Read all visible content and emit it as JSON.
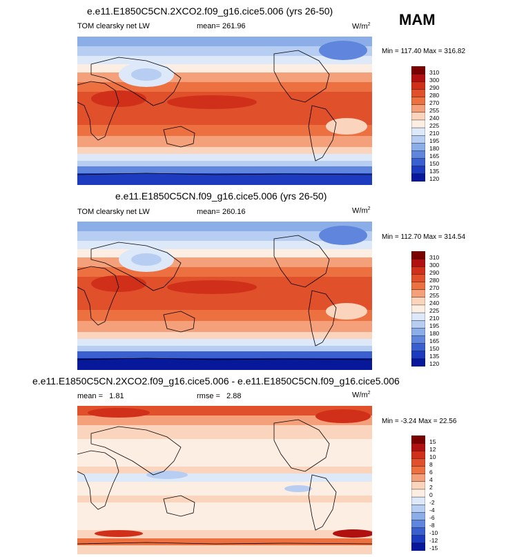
{
  "season": "MAM",
  "panels": [
    {
      "title": "e.e11.E1850C5CN.2XCO2.f09_g16.cice5.006 (yrs 26-50)",
      "left_text": "TOM clearsky net LW",
      "center_text": "mean= 261.96",
      "units": "W/m",
      "units_sup": "2",
      "minmax": "Min = 117.40 Max = 316.82",
      "colorbar_labels": [
        "310",
        "300",
        "290",
        "280",
        "270",
        "255",
        "240",
        "225",
        "210",
        "195",
        "180",
        "165",
        "150",
        "135",
        "120"
      ]
    },
    {
      "title": "e.e11.E1850C5CN.f09_g16.cice5.006 (yrs 26-50)",
      "left_text": "TOM clearsky net LW",
      "center_text": "mean= 260.16",
      "units": "W/m",
      "units_sup": "2",
      "minmax": "Min = 112.70 Max = 314.54",
      "colorbar_labels": [
        "310",
        "300",
        "290",
        "280",
        "270",
        "255",
        "240",
        "225",
        "210",
        "195",
        "180",
        "165",
        "150",
        "135",
        "120"
      ]
    },
    {
      "title": "e.e11.E1850C5CN.2XCO2.f09_g16.cice5.006 - e.e11.E1850C5CN.f09_g16.cice5.006",
      "left_text": "mean =   1.81",
      "center_text": "rmse =   2.88",
      "units": "W/m",
      "units_sup": "2",
      "minmax": "Min = -3.24 Max = 22.56",
      "colorbar_labels": [
        "15",
        "12",
        "10",
        "8",
        "6",
        "4",
        "2",
        "0",
        "-2",
        "-4",
        "-6",
        "-8",
        "-10",
        "-12",
        "-15"
      ]
    }
  ],
  "colors": {
    "abs_scale": [
      "#7a0000",
      "#b01010",
      "#d0301a",
      "#e0502a",
      "#ec7040",
      "#f4a07a",
      "#fad4bc",
      "#fdeee4",
      "#dde8f8",
      "#b8cdf2",
      "#8caee8",
      "#5f86dc",
      "#3a5fcf",
      "#1c3bbf",
      "#08189a"
    ],
    "diff_scale": [
      "#7a0000",
      "#b01010",
      "#d0301a",
      "#e0502a",
      "#ec7040",
      "#f4a07a",
      "#fad4bc",
      "#fdeee4",
      "#dde8f8",
      "#b8cdf2",
      "#8caee8",
      "#5f86dc",
      "#3a5fcf",
      "#1c3bbf",
      "#08189a"
    ]
  }
}
